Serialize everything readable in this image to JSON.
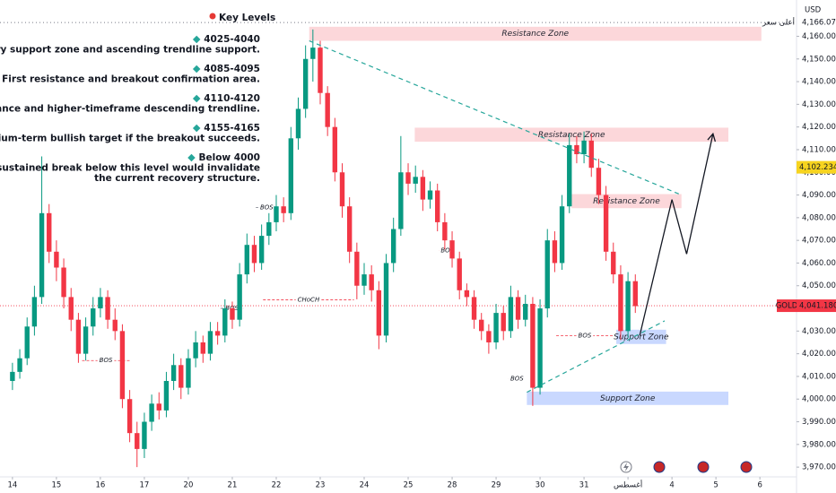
{
  "chart_data": {
    "type": "candlestick",
    "currency": "USD",
    "up_color": "#089981",
    "down_color": "#f23645",
    "xlim": [
      -1.7,
      107
    ],
    "ylim": [
      3965.7,
      4176
    ],
    "xticks": [
      {
        "value": 0,
        "label": "14"
      },
      {
        "value": 6,
        "label": "15"
      },
      {
        "value": 12,
        "label": "16"
      },
      {
        "value": 18,
        "label": "17"
      },
      {
        "value": 24,
        "label": "20"
      },
      {
        "value": 30,
        "label": "21"
      },
      {
        "value": 36,
        "label": "22"
      },
      {
        "value": 42,
        "label": "23"
      },
      {
        "value": 48,
        "label": "24"
      },
      {
        "value": 54,
        "label": "25"
      },
      {
        "value": 60,
        "label": "28"
      },
      {
        "value": 66,
        "label": "29"
      },
      {
        "value": 72,
        "label": "30"
      },
      {
        "value": 78,
        "label": "31"
      },
      {
        "value": 84,
        "label": "أغسطس"
      },
      {
        "value": 90,
        "label": "4"
      },
      {
        "value": 96,
        "label": "5"
      },
      {
        "value": 102,
        "label": "6"
      }
    ],
    "yticks": [
      {
        "value": 3970,
        "label": "3,970.000"
      },
      {
        "value": 3980,
        "label": "3,980.000"
      },
      {
        "value": 3990,
        "label": "3,990.000"
      },
      {
        "value": 4000,
        "label": "4,000.000"
      },
      {
        "value": 4010,
        "label": "4,010.000"
      },
      {
        "value": 4020,
        "label": "4,020.000"
      },
      {
        "value": 4030,
        "label": "4,030.000"
      },
      {
        "value": 4040,
        "label": "4,040.000"
      },
      {
        "value": 4050,
        "label": "4,050.000"
      },
      {
        "value": 4060,
        "label": "4,060.000"
      },
      {
        "value": 4070,
        "label": "4,070.000"
      },
      {
        "value": 4080,
        "label": "4,080.000"
      },
      {
        "value": 4090,
        "label": "4,090.000"
      },
      {
        "value": 4100,
        "label": "4,100.000"
      },
      {
        "value": 4110,
        "label": "4,110.000"
      },
      {
        "value": 4120,
        "label": "4,120.000"
      },
      {
        "value": 4130,
        "label": "4,130.000"
      },
      {
        "value": 4140,
        "label": "4,140.000"
      },
      {
        "value": 4150,
        "label": "4,150.000"
      },
      {
        "value": 4160,
        "label": "4,160.000"
      }
    ],
    "high_marker": {
      "name": "أعلى سعر",
      "value": 4166.07,
      "label": "4,166.070"
    },
    "cursor_price": {
      "value": 4102.234,
      "label": "4,102.234"
    },
    "last_price": {
      "symbol": "GOLD",
      "value": 4041.18,
      "label": "4,041.180"
    },
    "ohlc": [
      [
        4008,
        4016,
        4004,
        4012
      ],
      [
        4012,
        4022,
        4009,
        4018
      ],
      [
        4018,
        4036,
        4015,
        4032
      ],
      [
        4032,
        4050,
        4028,
        4045
      ],
      [
        4045,
        4107,
        4042,
        4082
      ],
      [
        4082,
        4086,
        4060,
        4065
      ],
      [
        4065,
        4070,
        4052,
        4058
      ],
      [
        4058,
        4062,
        4040,
        4045
      ],
      [
        4045,
        4049,
        4030,
        4035
      ],
      [
        4035,
        4038,
        4016,
        4020
      ],
      [
        4020,
        4036,
        4017,
        4032
      ],
      [
        4032,
        4045,
        4028,
        4040
      ],
      [
        4040,
        4049,
        4036,
        4045
      ],
      [
        4045,
        4048,
        4031,
        4035
      ],
      [
        4035,
        4040,
        4026,
        4030
      ],
      [
        4030,
        4033,
        3996,
        4000
      ],
      [
        4000,
        4004,
        3981,
        3985
      ],
      [
        3985,
        3990,
        3970,
        3978
      ],
      [
        3978,
        3994,
        3974,
        3990
      ],
      [
        3990,
        4002,
        3986,
        3998
      ],
      [
        3998,
        4003,
        3991,
        3995
      ],
      [
        3995,
        4012,
        3992,
        4008
      ],
      [
        4008,
        4020,
        4004,
        4015
      ],
      [
        4015,
        4018,
        4000,
        4005
      ],
      [
        4005,
        4022,
        4002,
        4018
      ],
      [
        4018,
        4030,
        4014,
        4025
      ],
      [
        4025,
        4028,
        4016,
        4020
      ],
      [
        4020,
        4034,
        4017,
        4030
      ],
      [
        4030,
        4034,
        4024,
        4028
      ],
      [
        4028,
        4044,
        4025,
        4040
      ],
      [
        4040,
        4043,
        4031,
        4035
      ],
      [
        4035,
        4060,
        4032,
        4055
      ],
      [
        4055,
        4073,
        4051,
        4068
      ],
      [
        4068,
        4072,
        4056,
        4060
      ],
      [
        4060,
        4077,
        4057,
        4072
      ],
      [
        4072,
        4082,
        4068,
        4078
      ],
      [
        4078,
        4090,
        4074,
        4085
      ],
      [
        4085,
        4089,
        4078,
        4082
      ],
      [
        4082,
        4120,
        4079,
        4115
      ],
      [
        4115,
        4133,
        4110,
        4128
      ],
      [
        4128,
        4156,
        4124,
        4150
      ],
      [
        4150,
        4163,
        4140,
        4155
      ],
      [
        4155,
        4158,
        4130,
        4135
      ],
      [
        4135,
        4138,
        4116,
        4120
      ],
      [
        4120,
        4124,
        4096,
        4100
      ],
      [
        4100,
        4104,
        4080,
        4085
      ],
      [
        4085,
        4089,
        4060,
        4065
      ],
      [
        4065,
        4069,
        4044,
        4050
      ],
      [
        4050,
        4060,
        4046,
        4055
      ],
      [
        4055,
        4059,
        4043,
        4048
      ],
      [
        4048,
        4052,
        4022,
        4028
      ],
      [
        4028,
        4064,
        4025,
        4060
      ],
      [
        4060,
        4080,
        4056,
        4075
      ],
      [
        4075,
        4116,
        4072,
        4100
      ],
      [
        4100,
        4104,
        4090,
        4095
      ],
      [
        4095,
        4103,
        4091,
        4098
      ],
      [
        4098,
        4101,
        4083,
        4088
      ],
      [
        4088,
        4096,
        4084,
        4092
      ],
      [
        4092,
        4095,
        4074,
        4078
      ],
      [
        4078,
        4082,
        4066,
        4070
      ],
      [
        4070,
        4074,
        4058,
        4062
      ],
      [
        4062,
        4065,
        4044,
        4048
      ],
      [
        4048,
        4051,
        4041,
        4045
      ],
      [
        4045,
        4048,
        4031,
        4035
      ],
      [
        4035,
        4038,
        4026,
        4030
      ],
      [
        4030,
        4033,
        4020,
        4025
      ],
      [
        4025,
        4042,
        4022,
        4038
      ],
      [
        4038,
        4041,
        4026,
        4030
      ],
      [
        4030,
        4050,
        4027,
        4045
      ],
      [
        4045,
        4048,
        4031,
        4035
      ],
      [
        4035,
        4046,
        4032,
        4042
      ],
      [
        4042,
        4045,
        3997,
        4005
      ],
      [
        4005,
        4044,
        4002,
        4040
      ],
      [
        4040,
        4075,
        4036,
        4070
      ],
      [
        4070,
        4074,
        4056,
        4060
      ],
      [
        4060,
        4090,
        4057,
        4085
      ],
      [
        4085,
        4117,
        4082,
        4112
      ],
      [
        4112,
        4116,
        4104,
        4108
      ],
      [
        4108,
        4118,
        4104,
        4114
      ],
      [
        4114,
        4117,
        4098,
        4102
      ],
      [
        4102,
        4106,
        4086,
        4090
      ],
      [
        4090,
        4094,
        4061,
        4065
      ],
      [
        4065,
        4069,
        4051,
        4055
      ],
      [
        4055,
        4059,
        4026,
        4030
      ],
      [
        4030,
        4056,
        4027,
        4052
      ],
      [
        4052,
        4055,
        4038,
        4041
      ]
    ],
    "zones": [
      {
        "label": "Resistance Zone",
        "range": [
          4158,
          4164.2
        ],
        "x": [
          40.5,
          102.2
        ],
        "color": "rgba(242,54,69,0.2)"
      },
      {
        "label": "Resistance Zone",
        "range": [
          4113.5,
          4119.7
        ],
        "x": [
          54.9,
          97.7
        ],
        "color": "rgba(242,54,69,0.2)"
      },
      {
        "label": "Resistance Zone",
        "range": [
          4084.2,
          4090.4
        ],
        "x": [
          76.3,
          91.3
        ],
        "color": "rgba(242,54,69,0.2)"
      },
      {
        "label": "Support Zone",
        "range": [
          4024.3,
          4030.6
        ],
        "x": [
          82.4,
          89.2
        ],
        "color": "rgba(41,98,255,0.25)"
      },
      {
        "label": "Support Zone",
        "range": [
          3997.4,
          4003.3
        ],
        "x": [
          70.2,
          97.7
        ],
        "color": "rgba(41,98,255,0.25)"
      }
    ],
    "trendlines": [
      {
        "x": [
          40.5,
          91.3
        ],
        "y": [
          4158,
          4090
        ],
        "color": "#26a69a"
      },
      {
        "x": [
          70.2,
          89
        ],
        "y": [
          4003,
          4034.5
        ],
        "color": "#26a69a"
      }
    ],
    "projection": {
      "x": [
        85.6,
        90,
        92,
        95.6
      ],
      "y": [
        4028,
        4088,
        4064,
        4117
      ],
      "color": "#131722"
    },
    "structure": [
      {
        "label": "BOS",
        "price": 4017,
        "x": [
          9.5,
          16
        ],
        "color": "#f23645"
      },
      {
        "label": "BOS",
        "price": 4040,
        "x": [
          28.4,
          31.5
        ],
        "color": "#787b86"
      },
      {
        "label": "BOS",
        "price": 4084.5,
        "x": [
          33.2,
          36.2
        ],
        "color": "#787b86"
      },
      {
        "label": "BOS",
        "price": 4065.5,
        "x": [
          58.2,
          60.5
        ],
        "color": "#f23645"
      },
      {
        "label": "CHoCH",
        "price": 4043.8,
        "x": [
          34.2,
          46.6
        ],
        "color": "#f23645"
      },
      {
        "label": "BOS",
        "price": 4009,
        "x": [
          67.7,
          70
        ],
        "color": "#f23645"
      },
      {
        "label": "BOS",
        "price": 4028,
        "x": [
          74.2,
          82
        ],
        "color": "#f23645"
      }
    ],
    "key_levels": {
      "title": "Key Levels",
      "items": [
        {
          "level": "4025-4040",
          "text": [
            "Primary support zone and ascending trendline support."
          ]
        },
        {
          "level": "4085-4095",
          "text": [
            "First resistance and breakout confirmation area."
          ]
        },
        {
          "level": "4110-4120",
          "text": [
            "Major resistance and higher-timeframe descending trendline."
          ]
        },
        {
          "level": "4155-4165",
          "text": [
            "Medium-term bullish target if the breakout succeeds."
          ]
        },
        {
          "level": "Below 4000",
          "text": [
            "A sustained break below this level would invalidate",
            "the current recovery structure."
          ]
        }
      ]
    }
  }
}
